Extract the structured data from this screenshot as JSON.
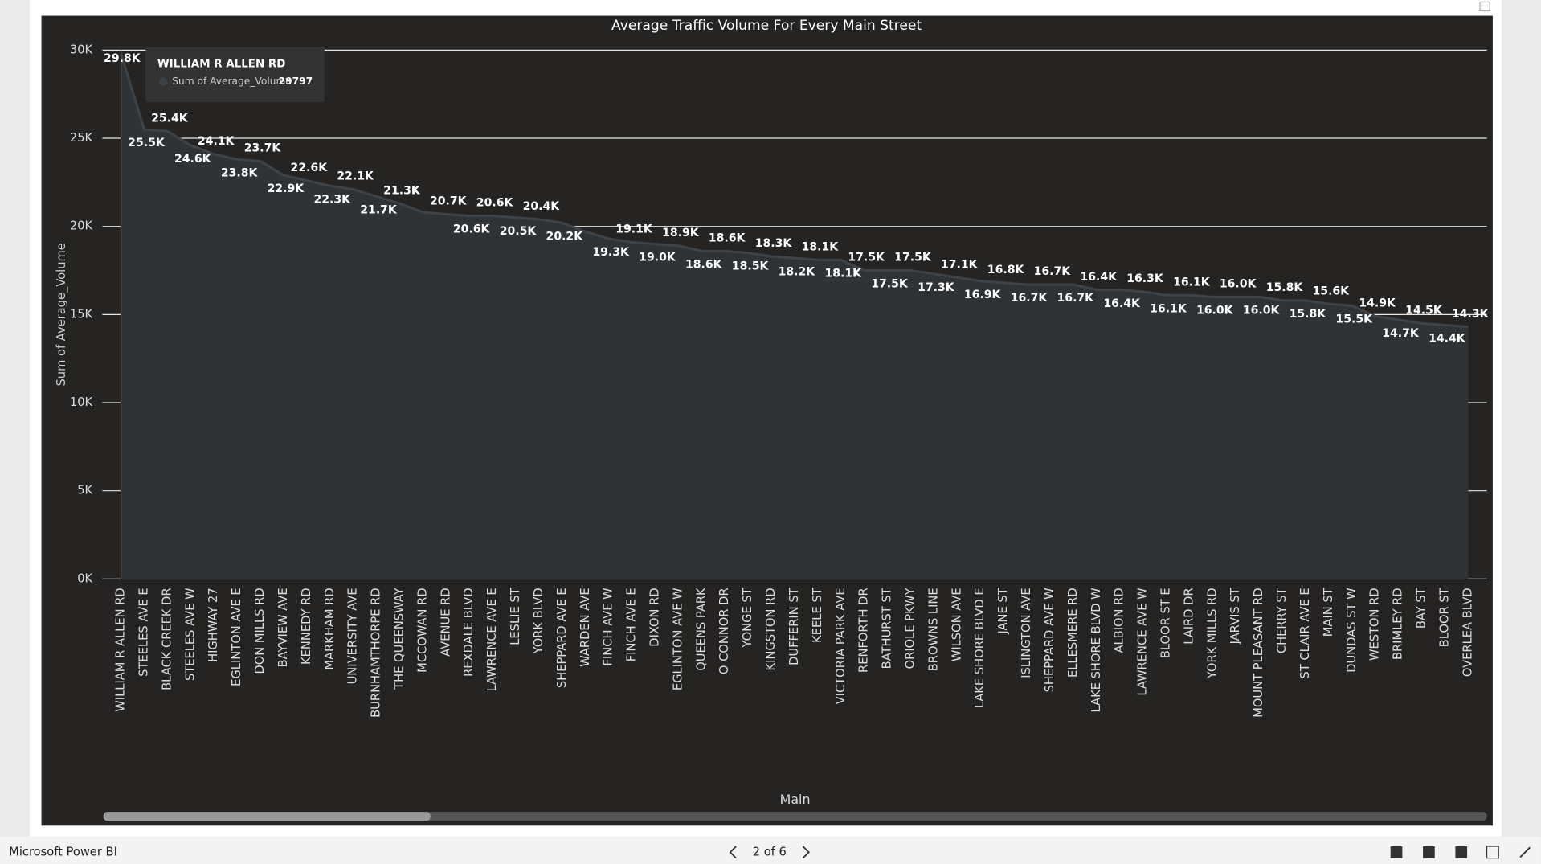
{
  "chart_data": {
    "type": "area",
    "title": "Average Traffic Volume For  Every Main Street",
    "x_label": "Main",
    "y_label": "Sum of Average_Volume",
    "categories": [
      "WILLIAM R ALLEN RD",
      "STEELES AVE E",
      "BLACK CREEK DR",
      "STEELES AVE W",
      "HIGHWAY 27",
      "EGLINTON AVE E",
      "DON MILLS RD",
      "BAYVIEW AVE",
      "KENNEDY RD",
      "MARKHAM RD",
      "UNIVERSITY AVE",
      "BURNHAMTHORPE RD",
      "THE QUEENSWAY",
      "MCCOWAN RD",
      "AVENUE RD",
      "REXDALE BLVD",
      "LAWRENCE AVE E",
      "LESLIE ST",
      "YORK BLVD",
      "SHEPPARD AVE E",
      "WARDEN AVE",
      "FINCH AVE W",
      "FINCH AVE E",
      "DIXON RD",
      "EGLINTON AVE W",
      "QUEENS PARK",
      "O CONNOR DR",
      "YONGE ST",
      "KINGSTON RD",
      "DUFFERIN ST",
      "KEELE ST",
      "VICTORIA PARK AVE",
      "RENFORTH DR",
      "BATHURST ST",
      "ORIOLE PKWY",
      "BROWNS LINE",
      "WILSON AVE",
      "LAKE SHORE BLVD E",
      "JANE ST",
      "ISLINGTON AVE",
      "SHEPPARD AVE W",
      "ELLESMERE RD",
      "LAKE SHORE BLVD W",
      "ALBION RD",
      "LAWRENCE AVE W",
      "BLOOR ST E",
      "LAIRD DR",
      "YORK MILLS RD",
      "JARVIS ST",
      "MOUNT PLEASANT RD",
      "CHERRY ST",
      "ST CLAIR AVE E",
      "MAIN ST",
      "DUNDAS ST W",
      "WESTON RD",
      "BRIMLEY RD",
      "BAY ST",
      "BLOOR ST",
      "OVERLEA BLVD"
    ],
    "values": [
      29797,
      25500,
      25400,
      24600,
      24100,
      23800,
      23700,
      22900,
      22600,
      22300,
      22100,
      21700,
      21300,
      20800,
      20700,
      20600,
      20600,
      20500,
      20400,
      20200,
      19700,
      19300,
      19100,
      19000,
      18900,
      18600,
      18600,
      18500,
      18300,
      18200,
      18100,
      18100,
      17500,
      17500,
      17500,
      17300,
      17100,
      16900,
      16800,
      16700,
      16700,
      16700,
      16400,
      16400,
      16300,
      16100,
      16100,
      16000,
      16000,
      16000,
      15800,
      15800,
      15600,
      15500,
      14900,
      14700,
      14500,
      14400,
      14300
    ],
    "value_labels": [
      "29.8K",
      "25.5K",
      "25.4K",
      "24.6K",
      "24.1K",
      "23.8K",
      "23.7K",
      "22.9K",
      "22.6K",
      "22.3K",
      "22.1K",
      "21.7K",
      "21.3K",
      null,
      "20.7K",
      "20.6K",
      "20.6K",
      "20.5K",
      "20.4K",
      "20.2K",
      null,
      "19.3K",
      "19.1K",
      "19.0K",
      "18.9K",
      "18.6K",
      "18.6K",
      "18.5K",
      "18.3K",
      "18.2K",
      "18.1K",
      "18.1K",
      "17.5K",
      "17.5K",
      "17.5K",
      "17.3K",
      "17.1K",
      "16.9K",
      "16.8K",
      "16.7K",
      "16.7K",
      "16.7K",
      "16.4K",
      "16.4K",
      "16.3K",
      "16.1K",
      "16.1K",
      "16.0K",
      "16.0K",
      "16.0K",
      "15.8K",
      "15.8K",
      "15.6K",
      "15.5K",
      "14.9K",
      "14.7K",
      "14.5K",
      "14.4K",
      "14.3K"
    ],
    "color": "#3d4449",
    "fill": "#2f3336",
    "ylim": [
      0,
      30000
    ],
    "yticks": [
      {
        "value": 0,
        "label": "0K"
      },
      {
        "value": 5000,
        "label": "5K"
      },
      {
        "value": 10000,
        "label": "10K"
      },
      {
        "value": 15000,
        "label": "15K"
      },
      {
        "value": 20000,
        "label": "20K"
      },
      {
        "value": 25000,
        "label": "25K"
      },
      {
        "value": 30000,
        "label": "30K"
      }
    ],
    "grid": true,
    "tooltip": {
      "title": "WILLIAM R ALLEN RD",
      "series": "Sum of Average_Volume"
    }
  },
  "footer": {
    "brand": "Microsoft Power BI",
    "page": "2 of 6"
  }
}
